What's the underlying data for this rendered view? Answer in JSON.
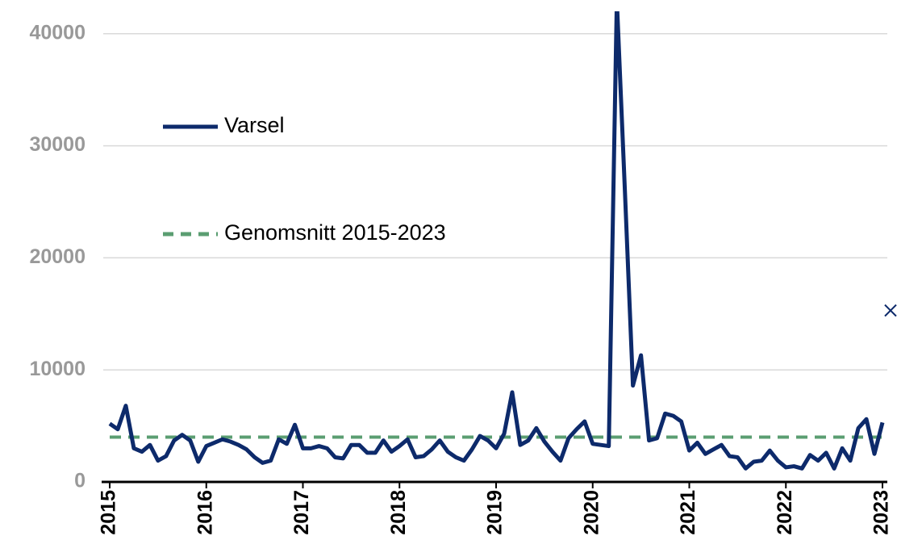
{
  "chart_data": {
    "type": "line",
    "categories": [
      "2015",
      null,
      null,
      null,
      null,
      null,
      null,
      null,
      null,
      null,
      null,
      null,
      "2016",
      null,
      null,
      null,
      null,
      null,
      null,
      null,
      null,
      null,
      null,
      null,
      "2017",
      null,
      null,
      null,
      null,
      null,
      null,
      null,
      null,
      null,
      null,
      null,
      "2018",
      null,
      null,
      null,
      null,
      null,
      null,
      null,
      null,
      null,
      null,
      null,
      "2019",
      null,
      null,
      null,
      null,
      null,
      null,
      null,
      null,
      null,
      null,
      null,
      "2020",
      null,
      null,
      null,
      null,
      null,
      null,
      null,
      null,
      null,
      null,
      null,
      "2021",
      null,
      null,
      null,
      null,
      null,
      null,
      null,
      null,
      null,
      null,
      null,
      "2022",
      null,
      null,
      null,
      null,
      null,
      null,
      null,
      null,
      null,
      null,
      null,
      "2023",
      null
    ],
    "series": [
      {
        "name": "Varsel",
        "color": "#0d2a6b",
        "values": [
          5200,
          4700,
          6800,
          3000,
          2700,
          3300,
          1900,
          2300,
          3700,
          4200,
          3700,
          1800,
          3200,
          3500,
          3800,
          3600,
          3300,
          2900,
          2200,
          1700,
          1900,
          3800,
          3400,
          5100,
          3000,
          3000,
          3200,
          3000,
          2200,
          2100,
          3300,
          3300,
          2600,
          2600,
          3700,
          2700,
          3200,
          3800,
          2200,
          2300,
          2900,
          3700,
          2700,
          2200,
          1900,
          2900,
          4100,
          3700,
          3000,
          4300,
          8000,
          3300,
          3700,
          4800,
          3600,
          2700,
          1900,
          3900,
          4700,
          5400,
          3400,
          3300,
          3200,
          43000,
          26000,
          8600,
          11300,
          3700,
          3900,
          6100,
          5900,
          5400,
          2800,
          3500,
          2500,
          2900,
          3300,
          2300,
          2200,
          1200,
          1800,
          1900,
          2800,
          1900,
          1300,
          1400,
          1200,
          2400,
          1900,
          2600,
          1200,
          3000,
          1900,
          4800,
          5600,
          2500,
          5300,
          null
        ]
      },
      {
        "color": "#0d2a6b",
        "marker": "x",
        "values": [
          null,
          null,
          null,
          null,
          null,
          null,
          null,
          null,
          null,
          null,
          null,
          null,
          null,
          null,
          null,
          null,
          null,
          null,
          null,
          null,
          null,
          null,
          null,
          null,
          null,
          null,
          null,
          null,
          null,
          null,
          null,
          null,
          null,
          null,
          null,
          null,
          null,
          null,
          null,
          null,
          null,
          null,
          null,
          null,
          null,
          null,
          null,
          null,
          null,
          null,
          null,
          null,
          null,
          null,
          null,
          null,
          null,
          null,
          null,
          null,
          null,
          null,
          null,
          null,
          null,
          null,
          null,
          null,
          null,
          null,
          null,
          null,
          null,
          null,
          null,
          null,
          null,
          null,
          null,
          null,
          null,
          null,
          null,
          null,
          null,
          null,
          null,
          null,
          null,
          null,
          null,
          null,
          null,
          null,
          null,
          null,
          null,
          15300
        ]
      }
    ],
    "reference_lines": [
      {
        "name": "Genomsnitt 2015-2023",
        "value": 4000,
        "color": "#5b9e72",
        "dashed": true
      }
    ],
    "ylim": [
      0,
      42000
    ],
    "yticks": [
      0,
      10000,
      20000,
      30000,
      40000
    ],
    "grid": true
  }
}
